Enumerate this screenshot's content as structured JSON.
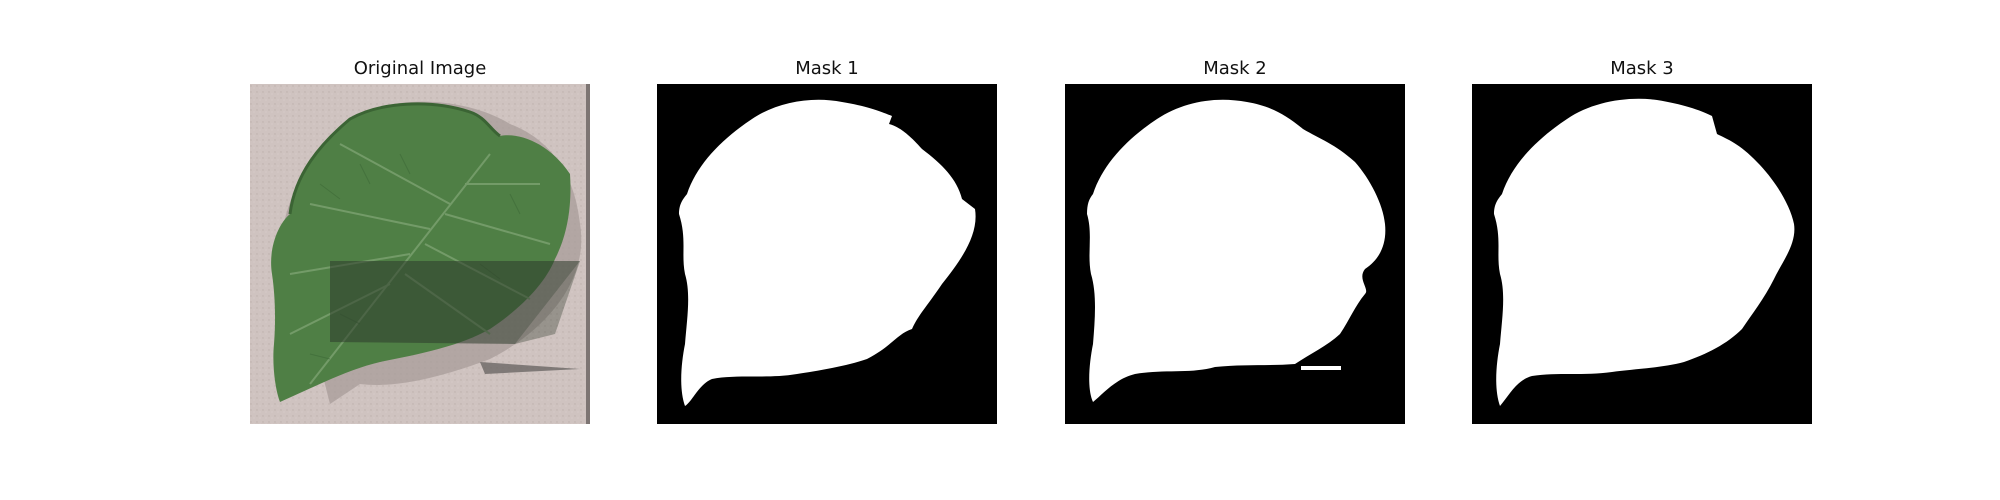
{
  "figure": {
    "panels": [
      {
        "title": "Original Image",
        "kind": "photo"
      },
      {
        "title": "Mask 1",
        "kind": "binary-mask"
      },
      {
        "title": "Mask 2",
        "kind": "binary-mask"
      },
      {
        "title": "Mask 3",
        "kind": "binary-mask"
      }
    ],
    "colors": {
      "mask_background": "#000000",
      "mask_foreground": "#ffffff",
      "leaf_green": "#4f7f45",
      "paper_background": "#cfc3c0",
      "shadow_overlay": "#2d3a2c"
    }
  }
}
